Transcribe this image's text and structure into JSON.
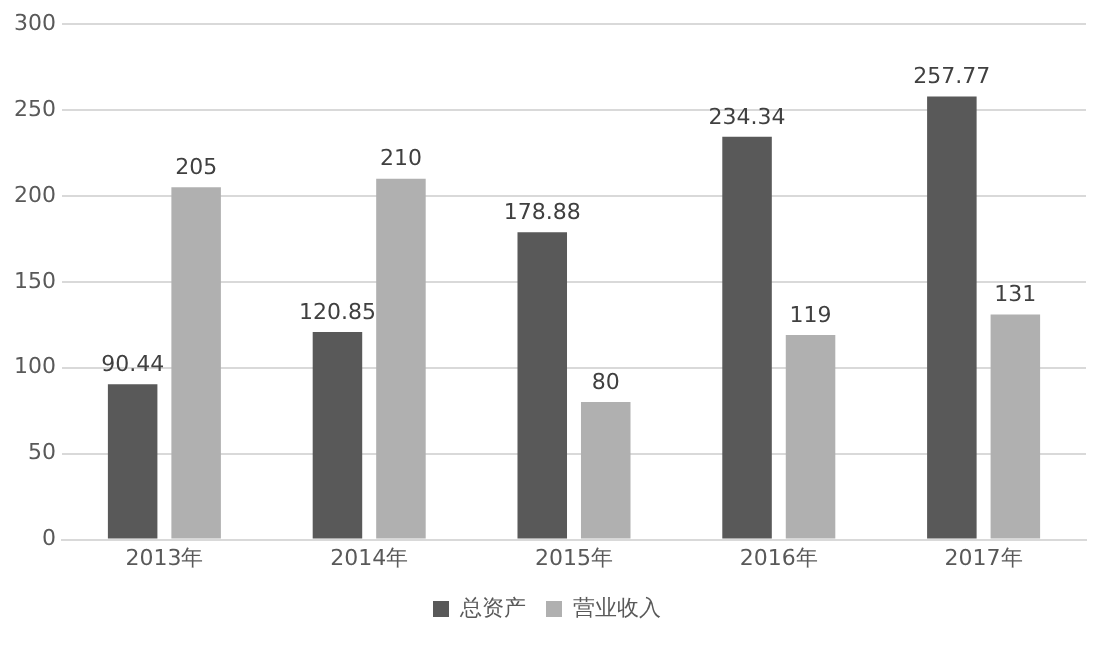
{
  "chart_data": {
    "type": "bar",
    "categories": [
      "2013年",
      "2014年",
      "2015年",
      "2016年",
      "2017年"
    ],
    "series": [
      {
        "name": "总资产",
        "color": "#595959",
        "values": [
          90.44,
          120.85,
          178.88,
          234.34,
          257.77
        ]
      },
      {
        "name": "营业收入",
        "color": "#b0b0b0",
        "values": [
          205,
          210,
          80,
          119,
          131
        ]
      }
    ],
    "ylim": [
      0,
      300
    ],
    "yticks": [
      0,
      50,
      100,
      150,
      200,
      250,
      300
    ],
    "grid": "y",
    "legend": "bottom",
    "data_labels": true
  }
}
